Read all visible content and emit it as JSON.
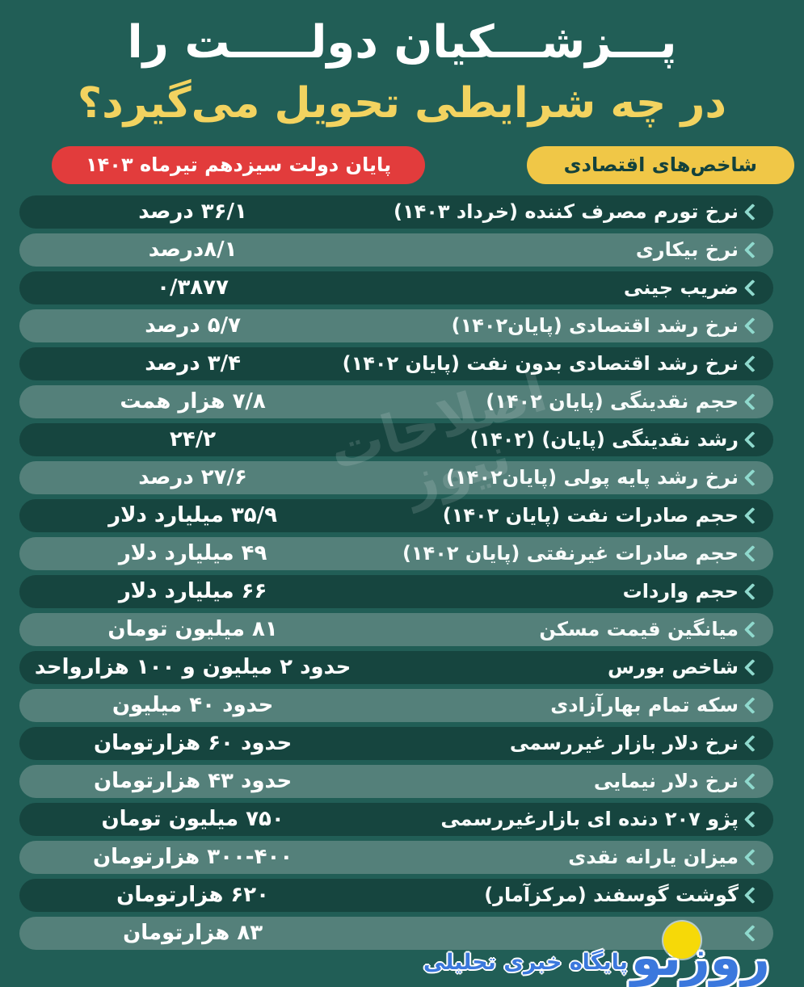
{
  "page": {
    "background": "#215e56"
  },
  "title": {
    "line1": "پـــزشـــکیان دولـــــت را",
    "line2": "در چه شرایطی تحویل می‌گیرد؟"
  },
  "header_badges": {
    "value_column": {
      "text": "پایان دولت سیزدهم تیرماه ۱۴۰۳",
      "bg": "#e23c3c",
      "color": "#ffffff"
    },
    "indicator_column": {
      "text": "شاخص‌های اقتصادی",
      "bg": "#f0c747",
      "color": "#14423c"
    }
  },
  "colors": {
    "background": "#215e56",
    "row_dark": "#16453f",
    "row_light": "#54807a",
    "chevron": "#8fd9cd",
    "title_yellow": "#f2d360",
    "badge_red": "#e23c3c",
    "badge_yellow": "#f0c747"
  },
  "watermarks": {
    "center_line1": "اصلاحات",
    "center_line2": "نیوز",
    "bottom_logo": "روزنو",
    "bottom_tagline": "پایگاه خبری تحلیلی"
  },
  "chart_data": {
    "type": "table",
    "title": "پزشکیان دولت را در چه شرایطی تحویل می‌گیرد؟",
    "columns": [
      "شاخص‌های اقتصادی",
      "پایان دولت سیزدهم تیرماه ۱۴۰۳"
    ],
    "rows": [
      {
        "label": "نرخ تورم مصرف کننده (خرداد ۱۴۰۳)",
        "value": "۳۶/۱ درصد"
      },
      {
        "label": "نرخ بیکاری",
        "value": "۸/۱درصد"
      },
      {
        "label": "ضریب جینی",
        "value": "۰/۳۸۷۷"
      },
      {
        "label": "نرخ رشد اقتصادی (پایان۱۴۰۲)",
        "value": "۵/۷ درصد"
      },
      {
        "label": "نرخ رشد اقتصادی بدون نفت (پایان ۱۴۰۲)",
        "value": "۳/۴ درصد"
      },
      {
        "label": "حجم نقدینگی (پایان ۱۴۰۲)",
        "value": "۷/۸ هزار همت"
      },
      {
        "label": "رشد نقدینگی (پایان) (۱۴۰۲)",
        "value": "۲۴/۲"
      },
      {
        "label": "نرخ رشد پایه پولی (پایان۱۴۰۲)",
        "value": "۲۷/۶ درصد"
      },
      {
        "label": "حجم صادرات نفت (پایان ۱۴۰۲)",
        "value": "۳۵/۹ میلیارد دلار"
      },
      {
        "label": "حجم صادرات غیرنفتی (پایان ۱۴۰۲)",
        "value": "۴۹ میلیارد دلار"
      },
      {
        "label": "حجم واردات",
        "value": "۶۶ میلیارد دلار"
      },
      {
        "label": "میانگین قیمت مسکن",
        "value": "۸۱ میلیون تومان"
      },
      {
        "label": "شاخص بورس",
        "value": "حدود ۲ میلیون و ۱۰۰ هزارواحد"
      },
      {
        "label": "سکه تمام بهارآزادی",
        "value": "حدود ۴۰ میلیون"
      },
      {
        "label": "نرخ دلار بازار غیررسمی",
        "value": "حدود ۶۰ هزارتومان"
      },
      {
        "label": "نرخ دلار نیمایی",
        "value": "حدود ۴۳ هزارتومان"
      },
      {
        "label": "پژو ۲۰۷ دنده ای بازارغیررسمی",
        "value": "۷۵۰ میلیون تومان"
      },
      {
        "label": "میزان یارانه نقدی",
        "value": "۳۰۰-۴۰۰ هزارتومان"
      },
      {
        "label": "گوشت گوسفند (مرکزآمار)",
        "value": "۶۲۰ هزارتومان"
      },
      {
        "label": "",
        "value": "۸۳ هزارتومان"
      }
    ]
  }
}
